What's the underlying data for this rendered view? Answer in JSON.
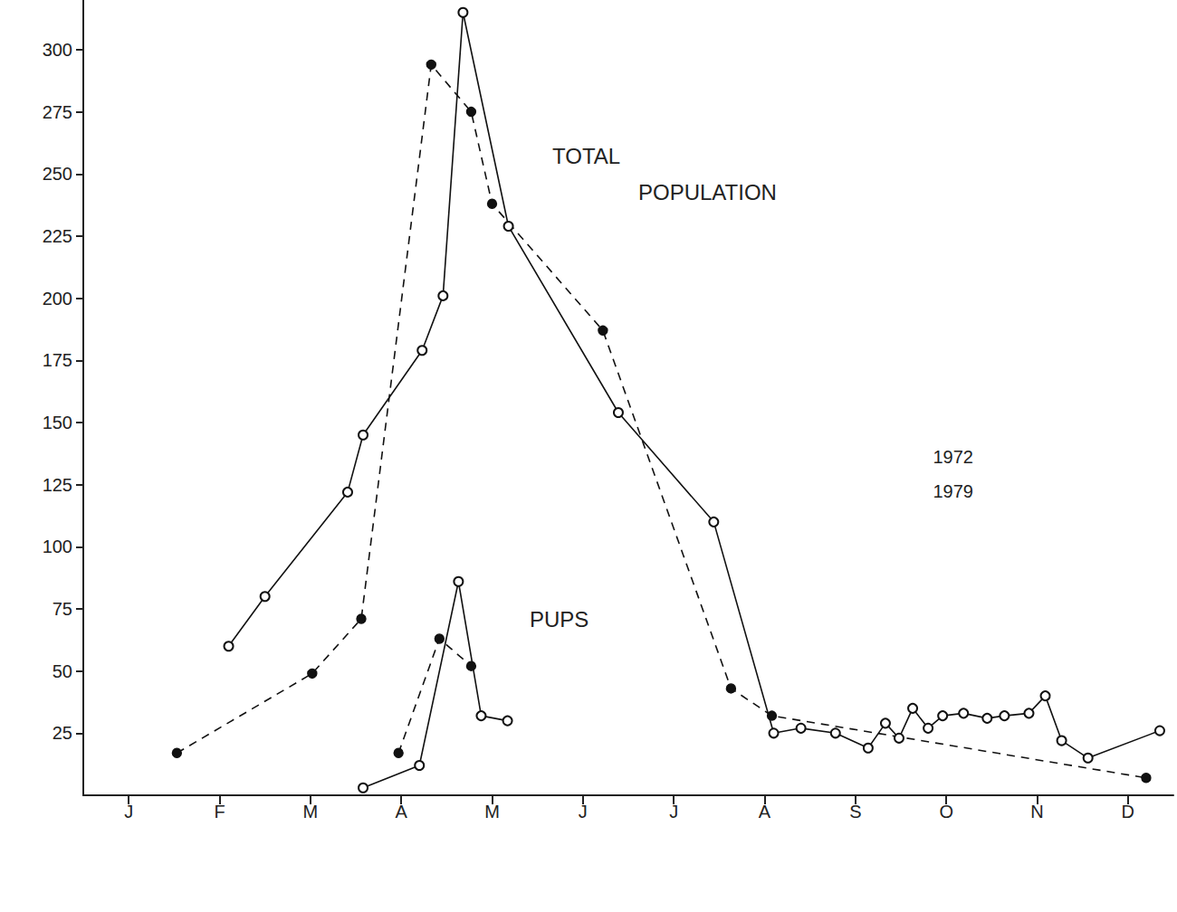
{
  "chart_data": {
    "type": "line",
    "xlim": [
      0,
      12
    ],
    "xticks": [
      {
        "value": 0.5,
        "label": "J"
      },
      {
        "value": 1.5,
        "label": "F"
      },
      {
        "value": 2.5,
        "label": "M"
      },
      {
        "value": 3.5,
        "label": "A"
      },
      {
        "value": 4.5,
        "label": "M"
      },
      {
        "value": 5.5,
        "label": "J"
      },
      {
        "value": 6.5,
        "label": "J"
      },
      {
        "value": 7.5,
        "label": "A"
      },
      {
        "value": 8.5,
        "label": "S"
      },
      {
        "value": 9.5,
        "label": "O"
      },
      {
        "value": 10.5,
        "label": "N"
      },
      {
        "value": 11.5,
        "label": "D"
      }
    ],
    "ylim": [
      0,
      320
    ],
    "yticks": [
      25,
      50,
      75,
      100,
      125,
      150,
      175,
      200,
      225,
      250,
      275,
      300
    ],
    "grid": false,
    "legend": "right",
    "annotations": [
      {
        "text": "TOTAL"
      },
      {
        "text": "POPULATION"
      },
      {
        "text": "PUPS"
      }
    ],
    "series": [
      {
        "name": "1972",
        "color": "#111111",
        "marker": "filled",
        "line_style": "dashed",
        "x": [
          1.03,
          2.52,
          3.06,
          3.83,
          4.27,
          4.5,
          5.72,
          7.13,
          7.58,
          11.7
        ],
        "values": [
          17,
          49,
          71,
          294,
          275,
          238,
          187,
          43,
          32,
          7
        ]
      },
      {
        "name": "1979",
        "color": "#111111",
        "marker": "open",
        "line_style": "solid",
        "x": [
          1.6,
          2.0,
          2.91,
          3.08,
          3.73,
          3.96,
          4.18,
          4.68,
          5.89,
          6.94,
          7.6,
          7.9,
          8.28,
          8.64,
          8.83,
          8.98,
          9.13,
          9.3,
          9.46,
          9.69,
          9.95,
          10.14,
          10.41,
          10.59,
          10.77,
          11.06,
          11.85
        ],
        "values": [
          60,
          80,
          122,
          145,
          179,
          201,
          315,
          229,
          154,
          110,
          25,
          27,
          25,
          19,
          29,
          23,
          35,
          27,
          32,
          33,
          31,
          32,
          33,
          40,
          22,
          15,
          26
        ]
      },
      {
        "name": "1972",
        "color": "#111111",
        "marker": "filled",
        "line_style": "dashed",
        "x": [
          3.47,
          3.92,
          4.27
        ],
        "values": [
          17,
          63,
          52
        ]
      },
      {
        "name": "1979",
        "color": "#111111",
        "marker": "open",
        "line_style": "solid",
        "x": [
          3.08,
          3.7,
          4.13,
          4.38,
          4.67
        ],
        "values": [
          3,
          12,
          86,
          32,
          30
        ]
      }
    ]
  }
}
